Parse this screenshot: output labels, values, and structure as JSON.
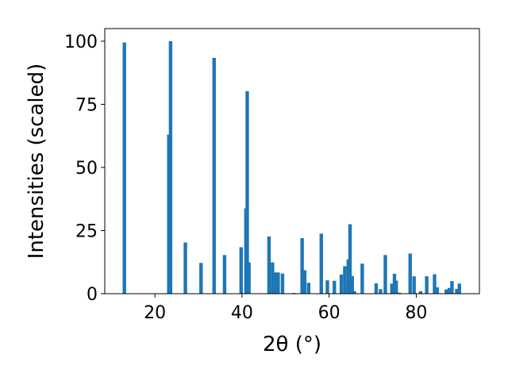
{
  "chart_data": {
    "type": "bar",
    "xlabel": "2θ (°)",
    "ylabel": "Intensities (scaled)",
    "xlim": [
      8.5,
      94.5
    ],
    "ylim": [
      0,
      105
    ],
    "grid": false,
    "bar_color": "#1f77b4",
    "bar_width": 0.8,
    "x_ticks": [
      20,
      40,
      60,
      80
    ],
    "y_ticks": [
      0,
      25,
      50,
      75,
      100
    ],
    "x": [
      13.0,
      23.2,
      23.6,
      27.0,
      30.6,
      33.6,
      36.0,
      39.8,
      40.9,
      41.2,
      41.6,
      46.2,
      47.0,
      47.8,
      48.3,
      49.3,
      51.9,
      53.8,
      54.4,
      55.3,
      58.2,
      59.6,
      61.2,
      62.8,
      63.6,
      64.4,
      64.8,
      65.3,
      65.8,
      67.6,
      70.8,
      71.8,
      72.9,
      74.4,
      75.0,
      75.4,
      76.1,
      78.6,
      79.5,
      81.0,
      82.4,
      84.2,
      84.8,
      86.9,
      87.6,
      88.2,
      89.3,
      89.9
    ],
    "values": [
      99.5,
      63.0,
      100.0,
      20.3,
      12.2,
      93.4,
      15.3,
      18.4,
      33.8,
      80.2,
      12.4,
      22.7,
      12.4,
      8.4,
      8.4,
      8.0,
      0.3,
      22.0,
      9.3,
      4.3,
      23.8,
      5.3,
      5.1,
      7.6,
      10.9,
      13.6,
      27.5,
      7.0,
      1.0,
      11.9,
      4.1,
      1.8,
      15.3,
      4.0,
      7.9,
      5.2,
      0.4,
      15.9,
      6.9,
      1.0,
      6.9,
      7.7,
      2.5,
      1.7,
      2.3,
      5.0,
      1.9,
      4.0
    ]
  }
}
